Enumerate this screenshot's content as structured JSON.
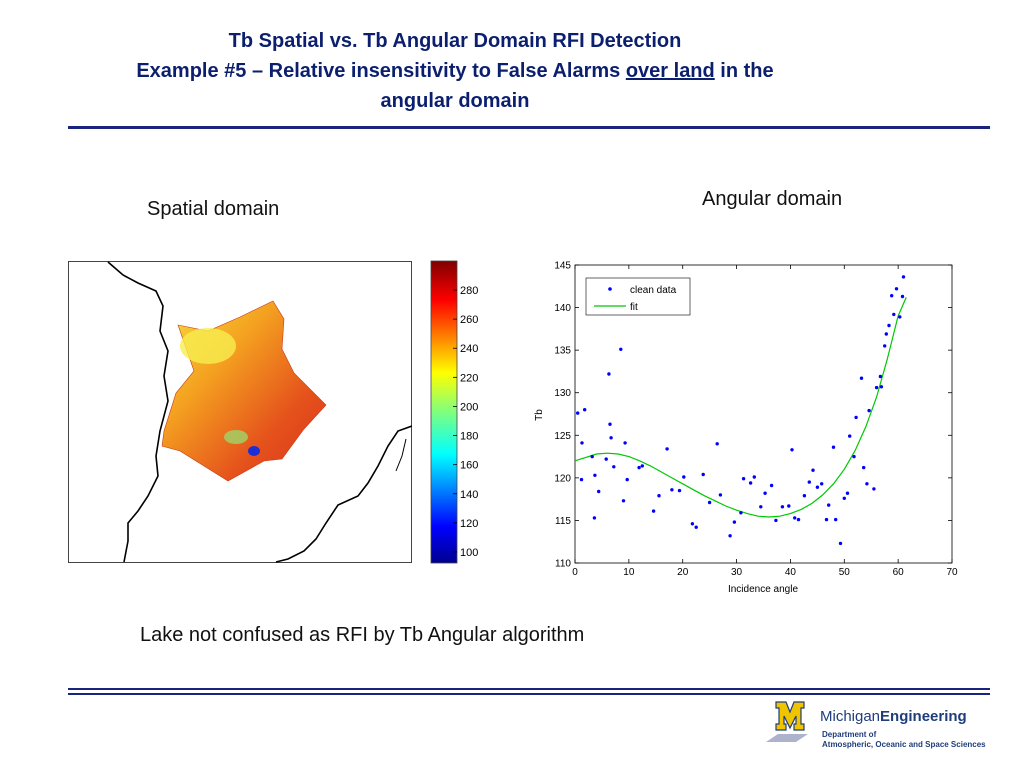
{
  "slide": {
    "title_line1": "Tb Spatial vs. Tb Angular Domain RFI Detection",
    "title_line2_pre": "Example #5 – Relative insensitivity to False Alarms ",
    "title_line2_underlined": "over land",
    "title_line2_post": " in the",
    "title_line3": "angular domain",
    "spatial_label": "Spatial domain",
    "angular_label": "Angular domain",
    "caption": "Lake not confused as RFI by Tb Angular algorithm",
    "accent_color": "#1a237e"
  },
  "colorbar": {
    "ticks": [
      "280",
      "260",
      "240",
      "220",
      "200",
      "180",
      "160",
      "140",
      "120",
      "100"
    ],
    "colormap": "jet"
  },
  "footer": {
    "logo_text_a": "Michigan",
    "logo_text_b": "Engineering",
    "dept_line1": "Department of",
    "dept_line2": "Atmospheric, Oceanic and Space Sciences",
    "logo_icon": "block-m-icon"
  },
  "chart_data": {
    "type": "scatter",
    "xlabel": "Incidence angle",
    "ylabel": "Tb",
    "xlim": [
      0,
      70
    ],
    "ylim": [
      110,
      145
    ],
    "x_ticks": [
      0,
      10,
      20,
      30,
      40,
      50,
      60,
      70
    ],
    "y_ticks": [
      110,
      115,
      120,
      125,
      130,
      135,
      140,
      145
    ],
    "legend_position": "top-left",
    "grid": false,
    "series": [
      {
        "name": "clean data",
        "color": "#0000ff",
        "marker": "dot",
        "points": [
          [
            0.5,
            127.6
          ],
          [
            1.2,
            119.8
          ],
          [
            1.3,
            124.1
          ],
          [
            1.8,
            128.0
          ],
          [
            3.2,
            122.5
          ],
          [
            3.6,
            115.3
          ],
          [
            3.7,
            120.3
          ],
          [
            4.4,
            118.4
          ],
          [
            5.8,
            122.2
          ],
          [
            6.3,
            132.2
          ],
          [
            6.5,
            126.3
          ],
          [
            6.7,
            124.7
          ],
          [
            7.2,
            121.3
          ],
          [
            8.5,
            135.1
          ],
          [
            9.0,
            117.3
          ],
          [
            9.3,
            124.1
          ],
          [
            9.7,
            119.8
          ],
          [
            11.9,
            121.2
          ],
          [
            12.5,
            121.4
          ],
          [
            14.6,
            116.1
          ],
          [
            15.6,
            117.9
          ],
          [
            17.1,
            123.4
          ],
          [
            18.0,
            118.6
          ],
          [
            19.4,
            118.5
          ],
          [
            20.2,
            120.1
          ],
          [
            21.8,
            114.6
          ],
          [
            22.5,
            114.2
          ],
          [
            23.8,
            120.4
          ],
          [
            25.0,
            117.1
          ],
          [
            26.4,
            124.0
          ],
          [
            27.0,
            118.0
          ],
          [
            28.8,
            113.2
          ],
          [
            29.6,
            114.8
          ],
          [
            30.8,
            115.9
          ],
          [
            31.3,
            119.9
          ],
          [
            32.6,
            119.4
          ],
          [
            33.3,
            120.1
          ],
          [
            34.5,
            116.6
          ],
          [
            35.3,
            118.2
          ],
          [
            36.5,
            119.1
          ],
          [
            37.3,
            115.0
          ],
          [
            38.5,
            116.6
          ],
          [
            39.7,
            116.7
          ],
          [
            40.3,
            123.3
          ],
          [
            40.8,
            115.3
          ],
          [
            41.5,
            115.1
          ],
          [
            42.6,
            117.9
          ],
          [
            43.5,
            119.5
          ],
          [
            44.2,
            120.9
          ],
          [
            45.0,
            118.9
          ],
          [
            45.8,
            119.3
          ],
          [
            46.7,
            115.1
          ],
          [
            47.1,
            116.8
          ],
          [
            48.0,
            123.6
          ],
          [
            48.4,
            115.1
          ],
          [
            49.3,
            112.3
          ],
          [
            50.0,
            117.6
          ],
          [
            50.6,
            118.2
          ],
          [
            51.0,
            124.9
          ],
          [
            51.8,
            122.5
          ],
          [
            52.2,
            127.1
          ],
          [
            53.2,
            131.7
          ],
          [
            53.6,
            121.2
          ],
          [
            54.2,
            119.3
          ],
          [
            54.6,
            127.9
          ],
          [
            55.5,
            118.7
          ],
          [
            56.0,
            130.6
          ],
          [
            56.7,
            131.9
          ],
          [
            56.9,
            130.7
          ],
          [
            57.5,
            135.5
          ],
          [
            57.8,
            136.9
          ],
          [
            58.3,
            137.9
          ],
          [
            58.8,
            141.4
          ],
          [
            59.2,
            139.2
          ],
          [
            59.7,
            142.2
          ],
          [
            60.3,
            138.9
          ],
          [
            60.8,
            141.3
          ],
          [
            61.0,
            143.6
          ]
        ]
      },
      {
        "name": "fit",
        "color": "#00c800",
        "marker": "line",
        "points": [
          [
            0,
            122.0
          ],
          [
            2,
            122.4
          ],
          [
            4,
            122.8
          ],
          [
            6,
            122.9
          ],
          [
            8,
            122.8
          ],
          [
            10,
            122.5
          ],
          [
            12,
            122.0
          ],
          [
            14,
            121.4
          ],
          [
            16,
            120.7
          ],
          [
            18,
            120.0
          ],
          [
            20,
            119.3
          ],
          [
            22,
            118.6
          ],
          [
            24,
            117.9
          ],
          [
            26,
            117.3
          ],
          [
            28,
            116.7
          ],
          [
            30,
            116.2
          ],
          [
            32,
            115.8
          ],
          [
            34,
            115.5
          ],
          [
            36,
            115.4
          ],
          [
            38,
            115.5
          ],
          [
            40,
            115.8
          ],
          [
            42,
            116.3
          ],
          [
            44,
            117.0
          ],
          [
            46,
            118.0
          ],
          [
            48,
            119.3
          ],
          [
            50,
            121.0
          ],
          [
            52,
            123.2
          ],
          [
            54,
            126.0
          ],
          [
            56,
            129.5
          ],
          [
            58,
            134.0
          ],
          [
            60,
            139.0
          ],
          [
            61.5,
            141.2
          ]
        ]
      }
    ]
  }
}
